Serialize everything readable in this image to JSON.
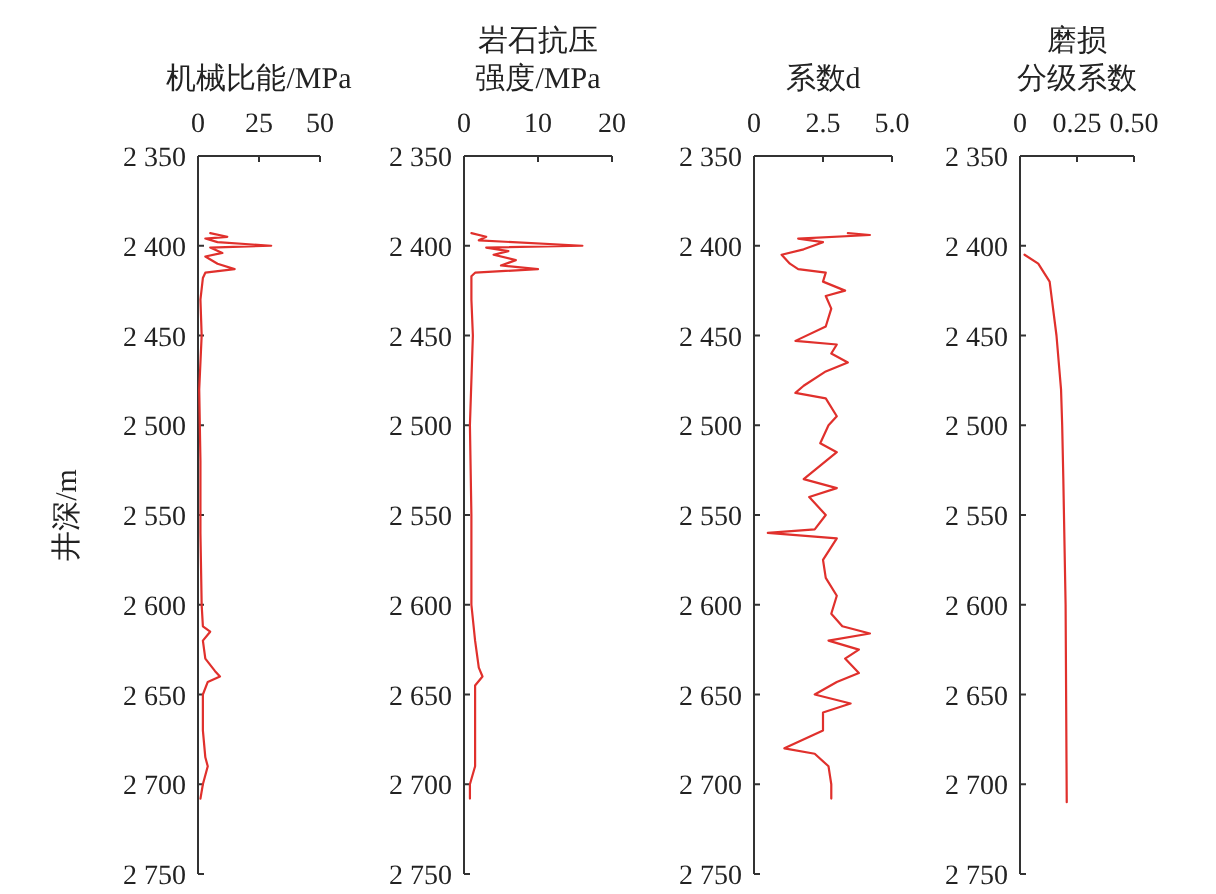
{
  "chart_data": [
    {
      "type": "line",
      "xlabel": "机械比能/MPa",
      "ylabel": "井深/m",
      "xlim": [
        0,
        50
      ],
      "xticks": [
        0,
        25,
        50
      ],
      "ylim": [
        2750,
        2350
      ],
      "yticks": [
        {
          "value": 2350,
          "label": "2 350"
        },
        {
          "value": 2400,
          "label": "2 400"
        },
        {
          "value": 2450,
          "label": "2 450"
        },
        {
          "value": 2500,
          "label": "2 500"
        },
        {
          "value": 2550,
          "label": "2 550"
        },
        {
          "value": 2600,
          "label": "2 600"
        },
        {
          "value": 2650,
          "label": "2 650"
        },
        {
          "value": 2700,
          "label": "2 700"
        },
        {
          "value": 2750,
          "label": "2 750"
        }
      ],
      "series": [
        {
          "color": "#e0302c",
          "x": [
            5,
            12,
            3,
            8,
            30,
            5,
            10,
            3,
            8,
            15,
            3,
            2,
            1,
            1.5,
            0.5,
            1,
            1,
            1.5,
            2,
            5,
            2,
            3,
            7,
            9,
            4,
            2,
            2,
            3,
            4,
            2,
            1
          ],
          "values": [
            2393,
            2395,
            2396,
            2398,
            2400,
            2401,
            2404,
            2406,
            2410,
            2413,
            2415,
            2418,
            2430,
            2450,
            2480,
            2520,
            2560,
            2600,
            2612,
            2615,
            2620,
            2630,
            2637,
            2640,
            2643,
            2650,
            2670,
            2685,
            2690,
            2700,
            2708
          ]
        }
      ]
    },
    {
      "type": "line",
      "xlabel": "岩石抗压强度/MPa",
      "xlim": [
        0,
        20
      ],
      "xticks": [
        0,
        10,
        20
      ],
      "ylim": [
        2750,
        2350
      ],
      "yticks": [
        {
          "value": 2350,
          "label": "2 350"
        },
        {
          "value": 2400,
          "label": "2 400"
        },
        {
          "value": 2450,
          "label": "2 450"
        },
        {
          "value": 2500,
          "label": "2 500"
        },
        {
          "value": 2550,
          "label": "2 550"
        },
        {
          "value": 2600,
          "label": "2 600"
        },
        {
          "value": 2650,
          "label": "2 650"
        },
        {
          "value": 2700,
          "label": "2 700"
        },
        {
          "value": 2750,
          "label": "2 750"
        }
      ],
      "series": [
        {
          "color": "#e0302c",
          "x": [
            1,
            3,
            2,
            16,
            3,
            6,
            4,
            7,
            5,
            10,
            1.5,
            1,
            1,
            1.2,
            0.8,
            1,
            1,
            1.5,
            2,
            2.5,
            1.5,
            1.5,
            1.5,
            0.8,
            0.8
          ],
          "values": [
            2393,
            2395,
            2397,
            2400,
            2401,
            2403,
            2405,
            2408,
            2411,
            2413,
            2415,
            2417,
            2430,
            2450,
            2500,
            2550,
            2600,
            2620,
            2635,
            2640,
            2645,
            2660,
            2690,
            2700,
            2708
          ]
        }
      ]
    },
    {
      "type": "line",
      "xlabel": "系数d",
      "xlim": [
        0,
        5
      ],
      "xticks": [
        0,
        {
          "value": 2.5,
          "label": "2.5"
        },
        {
          "value": 5,
          "label": "5.0"
        }
      ],
      "ylim": [
        2750,
        2350
      ],
      "yticks": [
        {
          "value": 2350,
          "label": "2 350"
        },
        {
          "value": 2400,
          "label": "2 400"
        },
        {
          "value": 2450,
          "label": "2 450"
        },
        {
          "value": 2500,
          "label": "2 500"
        },
        {
          "value": 2550,
          "label": "2 550"
        },
        {
          "value": 2600,
          "label": "2 600"
        },
        {
          "value": 2650,
          "label": "2 650"
        },
        {
          "value": 2700,
          "label": "2 700"
        },
        {
          "value": 2750,
          "label": "2 750"
        }
      ],
      "series": [
        {
          "color": "#e0302c",
          "x": [
            3.4,
            4.2,
            1.6,
            2.5,
            1.8,
            1.0,
            1.3,
            1.6,
            2.6,
            2.5,
            3.3,
            2.6,
            2.8,
            2.6,
            1.5,
            3.0,
            2.8,
            3.4,
            2.6,
            1.8,
            1.5,
            2.6,
            3.0,
            2.7,
            2.4,
            3.0,
            2.6,
            1.8,
            3.0,
            2.0,
            2.6,
            2.2,
            0.5,
            3.0,
            2.5,
            2.6,
            3.0,
            2.8,
            3.2,
            4.2,
            2.7,
            3.8,
            3.3,
            3.8,
            3.0,
            2.2,
            3.5,
            2.5,
            2.5,
            1.1,
            2.2,
            2.7,
            2.8,
            2.8
          ],
          "values": [
            2393,
            2394,
            2396,
            2398,
            2402,
            2405,
            2410,
            2413,
            2415,
            2420,
            2425,
            2428,
            2435,
            2445,
            2453,
            2455,
            2460,
            2465,
            2470,
            2478,
            2482,
            2485,
            2495,
            2500,
            2510,
            2515,
            2520,
            2530,
            2535,
            2540,
            2550,
            2558,
            2560,
            2563,
            2575,
            2585,
            2595,
            2605,
            2612,
            2616,
            2620,
            2625,
            2630,
            2638,
            2643,
            2650,
            2655,
            2660,
            2670,
            2680,
            2683,
            2690,
            2700,
            2708
          ]
        }
      ]
    },
    {
      "type": "line",
      "xlabel": "磨损分级系数",
      "xlim": [
        0,
        0.5
      ],
      "xticks": [
        0,
        {
          "value": 0.25,
          "label": "0.25"
        },
        {
          "value": 0.5,
          "label": "0.50"
        }
      ],
      "ylim": [
        2750,
        2350
      ],
      "yticks": [
        {
          "value": 2350,
          "label": "2 350"
        },
        {
          "value": 2400,
          "label": "2 400"
        },
        {
          "value": 2450,
          "label": "2 450"
        },
        {
          "value": 2500,
          "label": "2 500"
        },
        {
          "value": 2550,
          "label": "2 550"
        },
        {
          "value": 2600,
          "label": "2 600"
        },
        {
          "value": 2650,
          "label": "2 650"
        },
        {
          "value": 2700,
          "label": "2 700"
        },
        {
          "value": 2750,
          "label": "2 750"
        }
      ],
      "series": [
        {
          "color": "#e0302c",
          "x": [
            0.02,
            0.08,
            0.13,
            0.14,
            0.16,
            0.18,
            0.185,
            0.19,
            0.2,
            0.205
          ],
          "values": [
            2405,
            2410,
            2420,
            2430,
            2450,
            2480,
            2500,
            2530,
            2600,
            2710
          ]
        }
      ]
    }
  ]
}
